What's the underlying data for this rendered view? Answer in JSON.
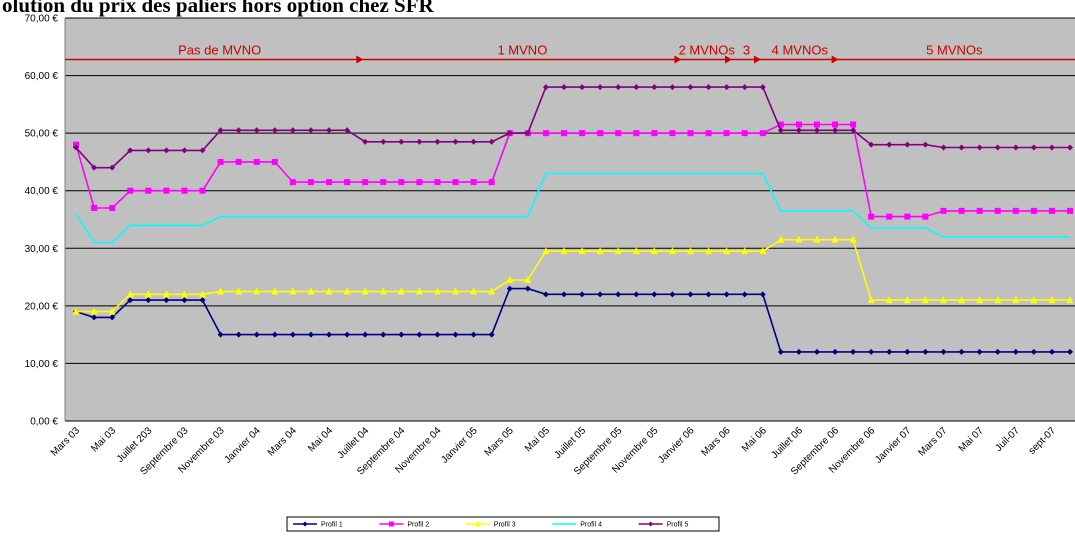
{
  "chart_data": {
    "type": "line",
    "title": "olution du prix des paliers hors option chez SFR",
    "xlabel": "",
    "ylabel": "",
    "ylim": [
      0,
      70
    ],
    "yticks": [
      "0,00 €",
      "10,00 €",
      "20,00 €",
      "30,00 €",
      "40,00 €",
      "50,00 €",
      "60,00 €",
      "70,00 €"
    ],
    "grid": true,
    "legend_position": "bottom",
    "x_tick_labels": [
      "Mars 03",
      "Mai 03",
      "Juillet 203",
      "Septembre 03",
      "Novembre 03",
      "Janvier 04",
      "Mars 04",
      "Mai 04",
      "Juillet 04",
      "Septembre 04",
      "Novembre 04",
      "Janvier 05",
      "Mars 05",
      "Mai 05",
      "Juillet 05",
      "Septembre 05",
      "Novembre 05",
      "Janvier 06",
      "Mars 06",
      "Mai 06",
      "Juillet 06",
      "Septembre 06",
      "Novembre 06",
      "Janvier 07",
      "Mars 07",
      "Mai 07",
      "Juil-07",
      "sept-07"
    ],
    "phases": [
      {
        "label": "Pas de MVNO",
        "start": 0,
        "end": 15.9
      },
      {
        "label": "1 MVNO",
        "start": 15.9,
        "end": 33.5
      },
      {
        "label": "2 MVNOs",
        "start": 33.5,
        "end": 36.3
      },
      {
        "label": "3",
        "start": 36.3,
        "end": 37.9
      },
      {
        "label": "4 MVNOs",
        "start": 37.9,
        "end": 42.2
      },
      {
        "label": "5 MVNOs",
        "start": 42.2,
        "end": 55
      }
    ],
    "phase_line_value": 62.8,
    "series": [
      {
        "name": "Profil 1",
        "color": "#000080",
        "marker": "diamond",
        "values": [
          19,
          18,
          18,
          21,
          21,
          21,
          21,
          21,
          15,
          15,
          15,
          15,
          15,
          15,
          15,
          15,
          15,
          15,
          15,
          15,
          15,
          15,
          15,
          15,
          23,
          23,
          22,
          22,
          22,
          22,
          22,
          22,
          22,
          22,
          22,
          22,
          22,
          22,
          22,
          12,
          12,
          12,
          12,
          12,
          12,
          12,
          12,
          12,
          12,
          12,
          12,
          12,
          12,
          12,
          12,
          12
        ]
      },
      {
        "name": "Profil 2",
        "color": "#ff00ff",
        "marker": "square",
        "values": [
          48,
          37,
          37,
          40,
          40,
          40,
          40,
          40,
          45,
          45,
          45,
          45,
          41.5,
          41.5,
          41.5,
          41.5,
          41.5,
          41.5,
          41.5,
          41.5,
          41.5,
          41.5,
          41.5,
          41.5,
          50,
          50,
          50,
          50,
          50,
          50,
          50,
          50,
          50,
          50,
          50,
          50,
          50,
          50,
          50,
          51.5,
          51.5,
          51.5,
          51.5,
          51.5,
          35.5,
          35.5,
          35.5,
          35.5,
          36.5,
          36.5,
          36.5,
          36.5,
          36.5,
          36.5,
          36.5,
          36.5
        ]
      },
      {
        "name": "Profil 3",
        "color": "#ffff00",
        "marker": "triangle",
        "values": [
          19,
          19,
          19,
          22,
          22,
          22,
          22,
          22,
          22.5,
          22.5,
          22.5,
          22.5,
          22.5,
          22.5,
          22.5,
          22.5,
          22.5,
          22.5,
          22.5,
          22.5,
          22.5,
          22.5,
          22.5,
          22.5,
          24.5,
          24.5,
          29.5,
          29.5,
          29.5,
          29.5,
          29.5,
          29.5,
          29.5,
          29.5,
          29.5,
          29.5,
          29.5,
          29.5,
          29.5,
          31.5,
          31.5,
          31.5,
          31.5,
          31.5,
          21,
          21,
          21,
          21,
          21,
          21,
          21,
          21,
          21,
          21,
          21,
          21
        ]
      },
      {
        "name": "Profil 4",
        "color": "#00ffff",
        "marker": "none",
        "values": [
          36,
          31,
          31,
          34,
          34,
          34,
          34,
          34,
          35.5,
          35.5,
          35.5,
          35.5,
          35.5,
          35.5,
          35.5,
          35.5,
          35.5,
          35.5,
          35.5,
          35.5,
          35.5,
          35.5,
          35.5,
          35.5,
          35.5,
          35.5,
          43,
          43,
          43,
          43,
          43,
          43,
          43,
          43,
          43,
          43,
          43,
          43,
          43,
          36.5,
          36.5,
          36.5,
          36.5,
          36.5,
          33.5,
          33.5,
          33.5,
          33.5,
          32,
          32,
          32,
          32,
          32,
          32,
          32,
          32
        ]
      },
      {
        "name": "Profil 5",
        "color": "#800080",
        "marker": "diamond",
        "values": [
          47.5,
          44,
          44,
          47,
          47,
          47,
          47,
          47,
          50.5,
          50.5,
          50.5,
          50.5,
          50.5,
          50.5,
          50.5,
          50.5,
          48.5,
          48.5,
          48.5,
          48.5,
          48.5,
          48.5,
          48.5,
          48.5,
          50,
          50,
          58,
          58,
          58,
          58,
          58,
          58,
          58,
          58,
          58,
          58,
          58,
          58,
          58,
          50.5,
          50.5,
          50.5,
          50.5,
          50.5,
          48,
          48,
          48,
          48,
          47.5,
          47.5,
          47.5,
          47.5,
          47.5,
          47.5,
          47.5,
          47.5
        ]
      }
    ]
  }
}
